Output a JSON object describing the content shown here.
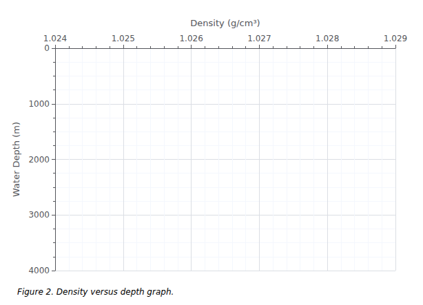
{
  "chart_data": {
    "type": "line",
    "xlabel": "Density (g/cm³)",
    "ylabel": "Water Depth (m)",
    "caption": "Figure 2. Density versus depth graph.",
    "xlim": [
      1.024,
      1.029
    ],
    "xticks": [
      1.024,
      1.025,
      1.026,
      1.027,
      1.028,
      1.029
    ],
    "ylim": [
      0,
      4000
    ],
    "yticks": [
      0,
      1000,
      2000,
      3000,
      4000
    ],
    "grid": true
  }
}
